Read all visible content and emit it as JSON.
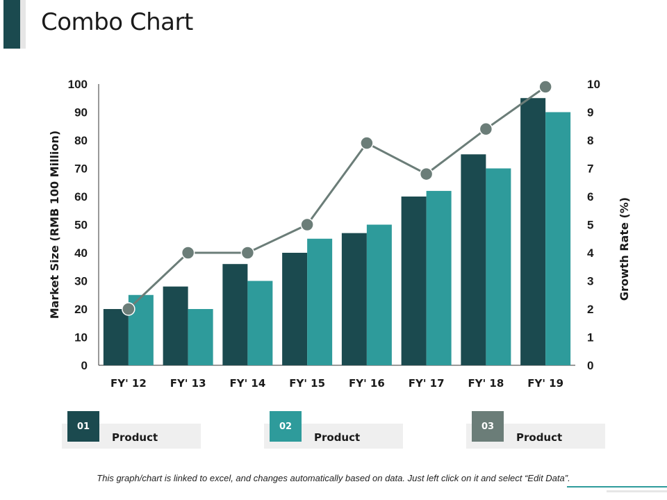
{
  "header": {
    "title": "Combo Chart"
  },
  "chart_data": {
    "type": "bar",
    "categories": [
      "FY' 12",
      "FY' 13",
      "FY' 14",
      "FY' 15",
      "FY' 16",
      "FY' 17",
      "FY' 18",
      "FY' 19"
    ],
    "series": [
      {
        "type": "bar",
        "axis": "left",
        "color": "#1b4a4f",
        "values": [
          20,
          28,
          36,
          40,
          47,
          60,
          75,
          95
        ]
      },
      {
        "type": "bar",
        "axis": "left",
        "color": "#2e9b9b",
        "values": [
          25,
          20,
          30,
          45,
          50,
          62,
          70,
          90
        ]
      },
      {
        "type": "line",
        "axis": "right",
        "color": "#6b7d78",
        "values": [
          2,
          4,
          4,
          5,
          7.9,
          6.8,
          8.4,
          9.9
        ]
      }
    ],
    "ylabel": "Market Size (RMB 100 Million)",
    "y2label": "Growth Rate (%)",
    "ylim": [
      0,
      100
    ],
    "y2lim": [
      0,
      10
    ],
    "yticks": [
      "0",
      "10",
      "20",
      "30",
      "40",
      "50",
      "60",
      "70",
      "80",
      "90",
      "100"
    ],
    "y2ticks": [
      "0",
      "1",
      "2",
      "3",
      "4",
      "5",
      "6",
      "7",
      "8",
      "9",
      "10"
    ],
    "grid": false
  },
  "legend": [
    {
      "num": "01",
      "label": "Product",
      "color": "#1b4a4f"
    },
    {
      "num": "02",
      "label": "Product",
      "color": "#2e9b9b"
    },
    {
      "num": "03",
      "label": "Product",
      "color": "#6b7d78"
    }
  ],
  "footnote": "This graph/chart is linked to excel, and changes automatically based on data. Just left click on it and select “Edit Data”."
}
